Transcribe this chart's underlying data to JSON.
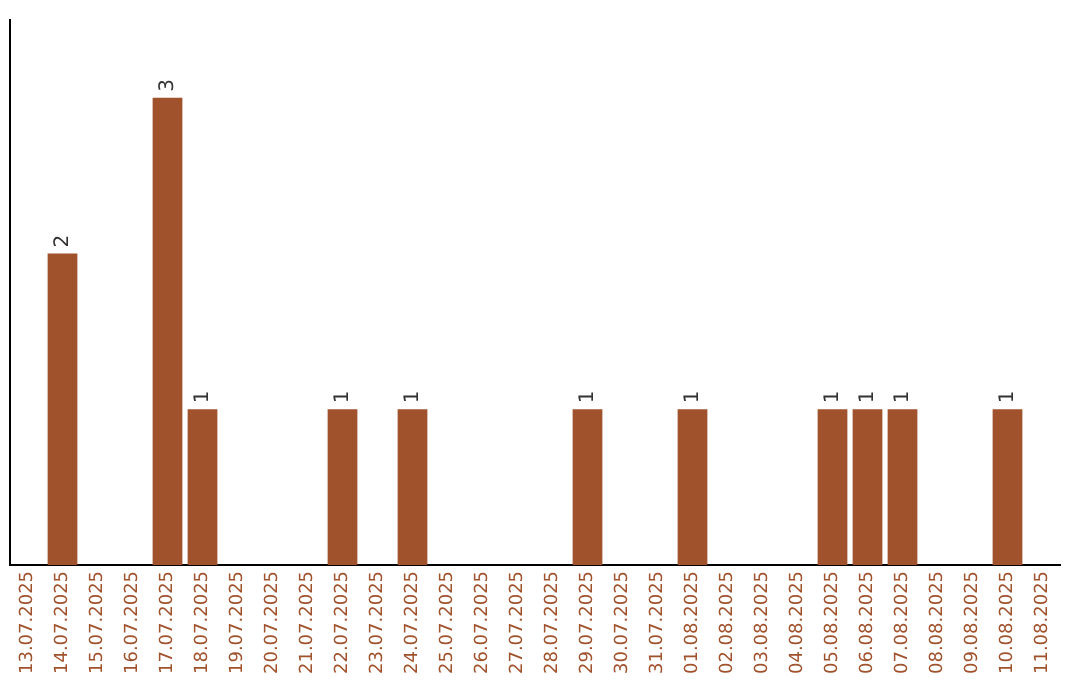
{
  "chart_data": {
    "type": "bar",
    "categories": [
      "13.07.2025",
      "14.07.2025",
      "15.07.2025",
      "16.07.2025",
      "17.07.2025",
      "18.07.2025",
      "19.07.2025",
      "20.07.2025",
      "21.07.2025",
      "22.07.2025",
      "23.07.2025",
      "24.07.2025",
      "25.07.2025",
      "26.07.2025",
      "27.07.2025",
      "28.07.2025",
      "29.07.2025",
      "30.07.2025",
      "31.07.2025",
      "01.08.2025",
      "02.08.2025",
      "03.08.2025",
      "04.08.2025",
      "05.08.2025",
      "06.08.2025",
      "07.08.2025",
      "08.08.2025",
      "09.08.2025",
      "10.08.2025",
      "11.08.2025"
    ],
    "values": [
      0,
      2,
      0,
      0,
      3,
      1,
      0,
      0,
      0,
      1,
      0,
      1,
      0,
      0,
      0,
      0,
      1,
      0,
      0,
      1,
      0,
      0,
      0,
      1,
      1,
      1,
      0,
      0,
      1,
      0
    ],
    "value_labels": [
      null,
      "2",
      null,
      null,
      "3",
      "1",
      null,
      null,
      null,
      "1",
      null,
      "1",
      null,
      null,
      null,
      null,
      "1",
      null,
      null,
      "1",
      null,
      null,
      null,
      "1",
      "1",
      "1",
      null,
      null,
      "1",
      null
    ],
    "color": "#a0522d",
    "grid": false,
    "legend": false,
    "tick_labels": "x"
  }
}
